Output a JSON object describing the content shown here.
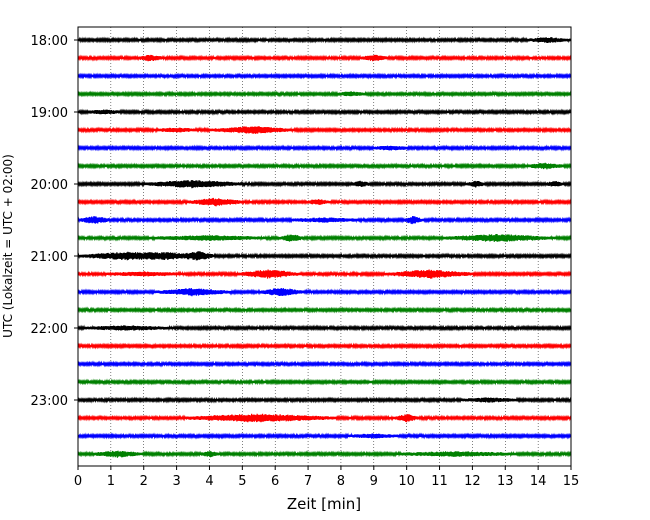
{
  "chart_data": {
    "type": "line",
    "title": "",
    "xlabel": "Zeit  [min]",
    "ylabel": "UTC (Lokalzeit = UTC + 02:00)",
    "xlim": [
      0,
      15
    ],
    "x_ticks": [
      0,
      1,
      2,
      3,
      4,
      5,
      6,
      7,
      8,
      9,
      10,
      11,
      12,
      13,
      14,
      15
    ],
    "y_ticks": [
      "18:00",
      "19:00",
      "20:00",
      "21:00",
      "22:00",
      "23:00"
    ],
    "grid": "vertical-dotted",
    "trace_interval_min": 15,
    "trace_colors": [
      "#000000",
      "#ff0000",
      "#0000ff",
      "#008000"
    ],
    "traces": [
      {
        "start": "18:00",
        "color": "#000000",
        "events": [
          [
            14.3,
            0.7,
            2.0
          ]
        ]
      },
      {
        "start": "18:15",
        "color": "#ff0000",
        "events": [
          [
            2.2,
            0.4,
            2.4
          ],
          [
            9.0,
            0.5,
            2.2
          ]
        ]
      },
      {
        "start": "18:30",
        "color": "#0000ff",
        "events": []
      },
      {
        "start": "18:45",
        "color": "#008000",
        "events": [
          [
            8.3,
            0.5,
            1.5
          ]
        ]
      },
      {
        "start": "19:00",
        "color": "#000000",
        "events": [
          [
            0.8,
            0.6,
            1.5
          ]
        ]
      },
      {
        "start": "19:15",
        "color": "#ff0000",
        "events": [
          [
            5.3,
            1.3,
            3.0
          ],
          [
            3.0,
            0.7,
            1.5
          ]
        ]
      },
      {
        "start": "19:30",
        "color": "#0000ff",
        "events": [
          [
            9.5,
            0.6,
            1.6
          ]
        ]
      },
      {
        "start": "19:45",
        "color": "#008000",
        "events": [
          [
            14.2,
            0.6,
            2.4
          ]
        ]
      },
      {
        "start": "20:00",
        "color": "#000000",
        "events": [
          [
            3.5,
            1.7,
            3.0
          ],
          [
            8.6,
            0.3,
            2.2
          ],
          [
            12.1,
            0.3,
            2.4
          ],
          [
            14.5,
            0.3,
            2.0
          ]
        ]
      },
      {
        "start": "20:15",
        "color": "#ff0000",
        "events": [
          [
            4.2,
            0.9,
            3.2
          ],
          [
            7.3,
            0.4,
            2.2
          ]
        ]
      },
      {
        "start": "20:30",
        "color": "#0000ff",
        "events": [
          [
            0.5,
            0.5,
            3.0
          ],
          [
            10.2,
            0.3,
            3.2
          ],
          [
            7.5,
            1.2,
            1.6
          ]
        ]
      },
      {
        "start": "20:45",
        "color": "#008000",
        "events": [
          [
            6.5,
            0.4,
            3.0
          ],
          [
            12.8,
            1.8,
            3.0
          ],
          [
            4.0,
            2.0,
            1.8
          ]
        ]
      },
      {
        "start": "21:00",
        "color": "#000000",
        "events": [
          [
            1.5,
            1.6,
            3.2
          ],
          [
            3.7,
            0.5,
            3.6
          ],
          [
            2.8,
            1.0,
            2.4
          ]
        ]
      },
      {
        "start": "21:15",
        "color": "#ff0000",
        "events": [
          [
            5.8,
            1.0,
            3.6
          ],
          [
            10.7,
            1.4,
            3.6
          ],
          [
            2.0,
            1.2,
            1.6
          ]
        ]
      },
      {
        "start": "21:30",
        "color": "#0000ff",
        "events": [
          [
            3.5,
            1.2,
            3.0
          ],
          [
            6.2,
            0.7,
            3.4
          ]
        ]
      },
      {
        "start": "21:45",
        "color": "#008000",
        "events": []
      },
      {
        "start": "22:00",
        "color": "#000000",
        "events": [
          [
            1.5,
            1.4,
            1.6
          ]
        ]
      },
      {
        "start": "22:15",
        "color": "#ff0000",
        "events": []
      },
      {
        "start": "22:30",
        "color": "#0000ff",
        "events": []
      },
      {
        "start": "22:45",
        "color": "#008000",
        "events": []
      },
      {
        "start": "23:00",
        "color": "#000000",
        "events": [
          [
            12.5,
            1.0,
            1.5
          ]
        ]
      },
      {
        "start": "23:15",
        "color": "#ff0000",
        "events": [
          [
            5.5,
            2.5,
            3.4
          ],
          [
            10.0,
            0.4,
            3.0
          ]
        ]
      },
      {
        "start": "23:30",
        "color": "#0000ff",
        "events": [
          [
            9.0,
            0.8,
            1.5
          ]
        ]
      },
      {
        "start": "23:45",
        "color": "#008000",
        "events": [
          [
            1.2,
            0.8,
            2.6
          ],
          [
            4.0,
            0.3,
            2.2
          ],
          [
            11.5,
            2.0,
            1.8
          ]
        ]
      }
    ]
  }
}
